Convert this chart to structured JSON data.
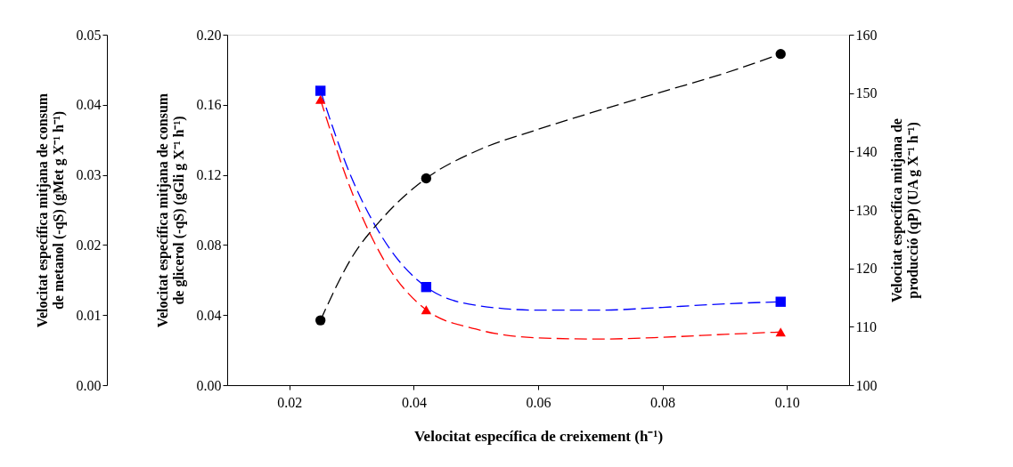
{
  "chart_data": {
    "type": "scatter",
    "xlabel": "Velocitat específica de creixement  (h⁻¹)",
    "ylabel": "Velocitat específica mitjana de consum\nde metanol (-qS) (gMet g X⁻¹ h⁻¹)",
    "y2label": "Velocitat específica mitjana de consum\nde glicerol (-qS) (gGli g X⁻¹ h⁻¹)",
    "y3label": "Velocitat específica mitjana de\nproducció  (qP)  (UA g X⁻¹ h⁻¹)",
    "xlim": [
      0.01,
      0.11
    ],
    "xticks": [
      0.02,
      0.04,
      0.06,
      0.08,
      {
        "value": 0.1,
        "label": "0.10"
      }
    ],
    "ylim": [
      0,
      0.05
    ],
    "yticks": [
      {
        "value": 0,
        "label": "0.00"
      },
      0.01,
      0.02,
      0.03,
      0.04,
      0.05
    ],
    "y2lim": [
      0,
      0.2
    ],
    "y2ticks": [
      {
        "value": 0,
        "label": "0.00"
      },
      0.04,
      0.08,
      0.12,
      0.16,
      {
        "value": 0.2,
        "label": "0.20"
      }
    ],
    "y3lim": [
      100,
      160
    ],
    "y3ticks": [
      100,
      110,
      120,
      130,
      140,
      150,
      160
    ],
    "series": [
      {
        "type": "line",
        "axis": "y",
        "color": "#0000ff",
        "line_style": "dashed",
        "marker": "none",
        "x": [
          0.025,
          0.03,
          0.035,
          0.042,
          0.05,
          0.06,
          0.07,
          0.08,
          0.09,
          0.099
        ],
        "values": [
          0.042,
          0.0296,
          0.021,
          0.014,
          0.0114,
          0.0107,
          0.0107,
          0.0111,
          0.0116,
          0.0119
        ]
      },
      {
        "type": "line",
        "axis": "y2",
        "color": "#000000",
        "line_style": "dashed",
        "marker": "none",
        "x": [
          0.025,
          0.03,
          0.035,
          0.042,
          0.05,
          0.06,
          0.07,
          0.08,
          0.09,
          0.099
        ],
        "values": [
          0.037,
          0.0726,
          0.0954,
          0.118,
          0.1335,
          0.146,
          0.157,
          0.1675,
          0.178,
          0.189
        ]
      },
      {
        "type": "line",
        "axis": "y3",
        "color": "#ff0000",
        "line_style": "dashed",
        "marker": "none",
        "x": [
          0.025,
          0.03,
          0.035,
          0.042,
          0.05,
          0.06,
          0.07,
          0.08,
          0.09,
          0.099
        ],
        "values": [
          148.9,
          133.2,
          121.8,
          112.9,
          109.6,
          108.1,
          107.9,
          108.2,
          108.7,
          109.1
        ]
      },
      {
        "axis": "y",
        "color": "#0000ff",
        "marker": "square",
        "x": [
          0.025,
          0.042,
          0.099
        ],
        "values": [
          0.042,
          0.014,
          0.0119
        ]
      },
      {
        "axis": "y2",
        "color": "#000000",
        "marker": "circle",
        "x": [
          0.025,
          0.042,
          0.099
        ],
        "values": [
          0.037,
          0.118,
          0.189
        ]
      },
      {
        "axis": "y3",
        "color": "#ff0000",
        "marker": "triangle",
        "x": [
          0.025,
          0.042,
          0.099
        ],
        "values": [
          148.9,
          112.9,
          109.1
        ]
      }
    ]
  }
}
